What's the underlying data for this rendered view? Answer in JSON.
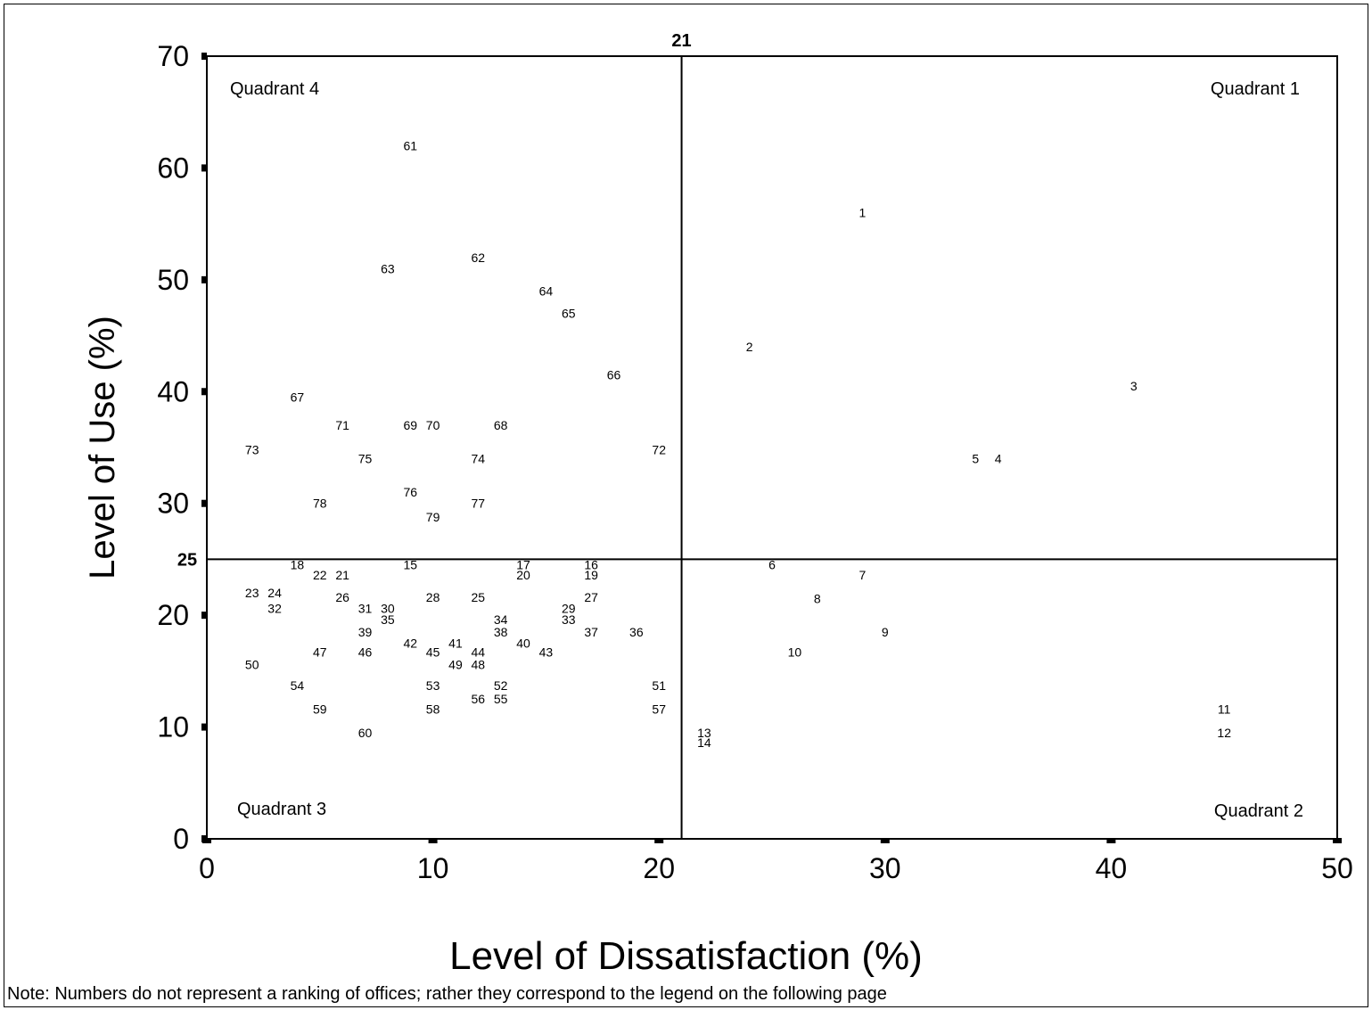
{
  "chart_data": {
    "type": "scatter",
    "xlabel": "Level of Dissatisfaction (%)",
    "ylabel": "Level of Use (%)",
    "xlim": [
      0,
      50
    ],
    "ylim": [
      0,
      70
    ],
    "x_ticks": [
      0,
      10,
      20,
      30,
      40,
      50
    ],
    "y_ticks": [
      0,
      10,
      20,
      30,
      40,
      50,
      60,
      70
    ],
    "grid": false,
    "divider_x": 21,
    "divider_y": 25,
    "divider_x_label": "21",
    "divider_y_label": "25",
    "quadrants": [
      {
        "label": "Quadrant 4",
        "corner": "top-left"
      },
      {
        "label": "Quadrant 1",
        "corner": "top-right"
      },
      {
        "label": "Quadrant 3",
        "corner": "bottom-left"
      },
      {
        "label": "Quadrant 2",
        "corner": "bottom-right"
      }
    ],
    "points": [
      {
        "label": "1",
        "x": 29,
        "y": 56
      },
      {
        "label": "2",
        "x": 24,
        "y": 44
      },
      {
        "label": "3",
        "x": 41,
        "y": 40.5
      },
      {
        "label": "4",
        "x": 35,
        "y": 34
      },
      {
        "label": "5",
        "x": 34,
        "y": 34
      },
      {
        "label": "6",
        "x": 25,
        "y": 24.5
      },
      {
        "label": "7",
        "x": 29,
        "y": 23.6
      },
      {
        "label": "8",
        "x": 27,
        "y": 21.5
      },
      {
        "label": "9",
        "x": 30,
        "y": 18.5
      },
      {
        "label": "10",
        "x": 26,
        "y": 16.7
      },
      {
        "label": "11",
        "x": 45,
        "y": 11.6
      },
      {
        "label": "12",
        "x": 45,
        "y": 9.5
      },
      {
        "label": "13",
        "x": 22,
        "y": 9.5
      },
      {
        "label": "14",
        "x": 22,
        "y": 8.6
      },
      {
        "label": "15",
        "x": 9,
        "y": 24.5
      },
      {
        "label": "16",
        "x": 17,
        "y": 24.5
      },
      {
        "label": "17",
        "x": 14,
        "y": 24.5
      },
      {
        "label": "18",
        "x": 4,
        "y": 24.5
      },
      {
        "label": "19",
        "x": 17,
        "y": 23.6
      },
      {
        "label": "20",
        "x": 14,
        "y": 23.6
      },
      {
        "label": "21",
        "x": 6,
        "y": 23.6
      },
      {
        "label": "22",
        "x": 5,
        "y": 23.6
      },
      {
        "label": "23",
        "x": 2,
        "y": 22
      },
      {
        "label": "24",
        "x": 3,
        "y": 22
      },
      {
        "label": "25",
        "x": 12,
        "y": 21.6
      },
      {
        "label": "26",
        "x": 6,
        "y": 21.6
      },
      {
        "label": "27",
        "x": 17,
        "y": 21.6
      },
      {
        "label": "28",
        "x": 10,
        "y": 21.6
      },
      {
        "label": "29",
        "x": 16,
        "y": 20.6
      },
      {
        "label": "30",
        "x": 8,
        "y": 20.6
      },
      {
        "label": "31",
        "x": 7,
        "y": 20.6
      },
      {
        "label": "32",
        "x": 3,
        "y": 20.6
      },
      {
        "label": "33",
        "x": 16,
        "y": 19.6
      },
      {
        "label": "34",
        "x": 13,
        "y": 19.6
      },
      {
        "label": "35",
        "x": 8,
        "y": 19.6
      },
      {
        "label": "36",
        "x": 19,
        "y": 18.5
      },
      {
        "label": "37",
        "x": 17,
        "y": 18.5
      },
      {
        "label": "38",
        "x": 13,
        "y": 18.5
      },
      {
        "label": "39",
        "x": 7,
        "y": 18.5
      },
      {
        "label": "40",
        "x": 14,
        "y": 17.5
      },
      {
        "label": "41",
        "x": 11,
        "y": 17.5
      },
      {
        "label": "42",
        "x": 9,
        "y": 17.5
      },
      {
        "label": "43",
        "x": 15,
        "y": 16.7
      },
      {
        "label": "44",
        "x": 12,
        "y": 16.7
      },
      {
        "label": "45",
        "x": 10,
        "y": 16.7
      },
      {
        "label": "46",
        "x": 7,
        "y": 16.7
      },
      {
        "label": "47",
        "x": 5,
        "y": 16.7
      },
      {
        "label": "48",
        "x": 12,
        "y": 15.6
      },
      {
        "label": "49",
        "x": 11,
        "y": 15.6
      },
      {
        "label": "50",
        "x": 2,
        "y": 15.6
      },
      {
        "label": "51",
        "x": 20,
        "y": 13.7
      },
      {
        "label": "52",
        "x": 13,
        "y": 13.7
      },
      {
        "label": "53",
        "x": 10,
        "y": 13.7
      },
      {
        "label": "54",
        "x": 4,
        "y": 13.7
      },
      {
        "label": "55",
        "x": 13,
        "y": 12.5
      },
      {
        "label": "56",
        "x": 12,
        "y": 12.5
      },
      {
        "label": "57",
        "x": 20,
        "y": 11.6
      },
      {
        "label": "58",
        "x": 10,
        "y": 11.6
      },
      {
        "label": "59",
        "x": 5,
        "y": 11.6
      },
      {
        "label": "60",
        "x": 7,
        "y": 9.5
      },
      {
        "label": "61",
        "x": 9,
        "y": 62
      },
      {
        "label": "62",
        "x": 12,
        "y": 52
      },
      {
        "label": "63",
        "x": 8,
        "y": 51
      },
      {
        "label": "64",
        "x": 15,
        "y": 49
      },
      {
        "label": "65",
        "x": 16,
        "y": 47
      },
      {
        "label": "66",
        "x": 18,
        "y": 41.5
      },
      {
        "label": "67",
        "x": 4,
        "y": 39.5
      },
      {
        "label": "68",
        "x": 13,
        "y": 37
      },
      {
        "label": "69",
        "x": 9,
        "y": 37
      },
      {
        "label": "70",
        "x": 10,
        "y": 37
      },
      {
        "label": "71",
        "x": 6,
        "y": 37
      },
      {
        "label": "72",
        "x": 20,
        "y": 34.8
      },
      {
        "label": "73",
        "x": 2,
        "y": 34.8
      },
      {
        "label": "74",
        "x": 12,
        "y": 34
      },
      {
        "label": "75",
        "x": 7,
        "y": 34
      },
      {
        "label": "76",
        "x": 9,
        "y": 31
      },
      {
        "label": "77",
        "x": 12,
        "y": 30
      },
      {
        "label": "78",
        "x": 5,
        "y": 30
      },
      {
        "label": "79",
        "x": 10,
        "y": 28.8
      }
    ]
  },
  "note": "Note:  Numbers do not represent a ranking of offices; rather they correspond to the legend on the following page"
}
